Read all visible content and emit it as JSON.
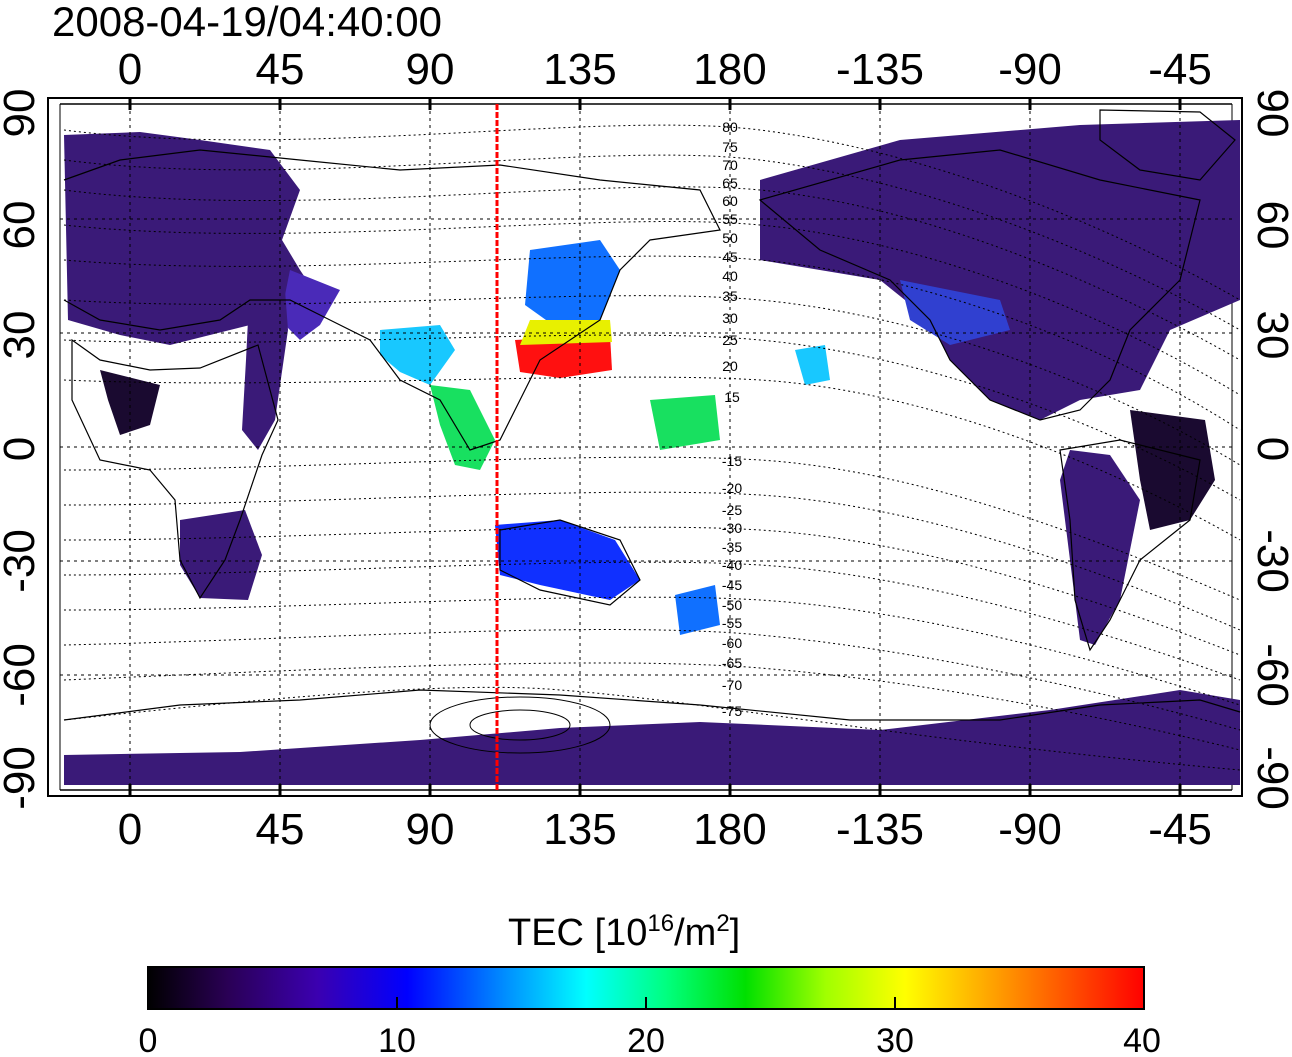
{
  "title": "2008-04-19/04:40:00",
  "map": {
    "lon_ticks": [
      "0",
      "45",
      "90",
      "135",
      "180",
      "-135",
      "-90",
      "-45"
    ],
    "lat_ticks": [
      "90",
      "60",
      "30",
      "0",
      "-30",
      "-60",
      "-90"
    ],
    "maglat_labels": [
      "80",
      "75",
      "70",
      "65",
      "60",
      "55",
      "50",
      "45",
      "40",
      "35",
      "30",
      "25",
      "20",
      "15",
      "-15",
      "-20",
      "-25",
      "-30",
      "-35",
      "-40",
      "-45",
      "-50",
      "-55",
      "-60",
      "-65",
      "-70",
      "-75"
    ],
    "marker_line_longitude": 110,
    "marker_line_color": "#ff0000",
    "grid": true,
    "land_fill": "#3a1a78",
    "high_tec_colors": [
      "#1030ff",
      "#18c8ff",
      "#18e060",
      "#e8f000",
      "#ff8000",
      "#ff1010"
    ]
  },
  "colorbar": {
    "label_main": "TEC  [10",
    "label_sup1": "16",
    "label_mid": "/m",
    "label_sup2": "2",
    "label_end": "]",
    "min": 0,
    "max": 40,
    "ticks": [
      "0",
      "10",
      "20",
      "30",
      "40"
    ],
    "colormap": [
      "#000000",
      "#2a0055",
      "#3b00b0",
      "#0000ff",
      "#0090ff",
      "#00ffff",
      "#00ff80",
      "#00e000",
      "#a0ff00",
      "#ffff00",
      "#ff8000",
      "#ff0000"
    ]
  }
}
